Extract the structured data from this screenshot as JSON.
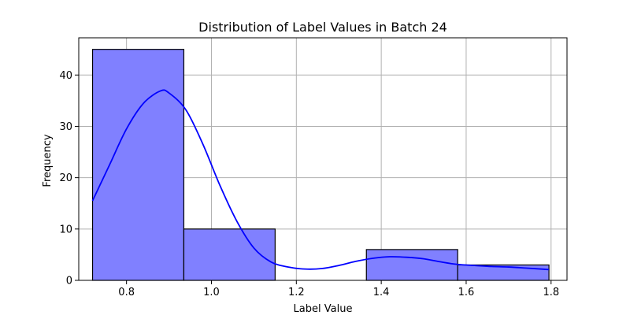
{
  "chart_data": {
    "type": "bar",
    "title": "Distribution of Label Values in Batch 24",
    "xlabel": "Label Value",
    "ylabel": "Frequency",
    "xlim": [
      0.6875,
      1.8375
    ],
    "ylim": [
      0,
      47.25
    ],
    "xticks": [
      0.8,
      1.0,
      1.2,
      1.4,
      1.6,
      1.8
    ],
    "xtick_labels": [
      "0.8",
      "1.0",
      "1.2",
      "1.4",
      "1.6",
      "1.8"
    ],
    "yticks": [
      0,
      10,
      20,
      30,
      40
    ],
    "ytick_labels": [
      "0",
      "10",
      "20",
      "30",
      "40"
    ],
    "grid": true,
    "bins": [
      {
        "x0": 0.72,
        "x1": 0.935,
        "count": 45
      },
      {
        "x0": 0.935,
        "x1": 1.15,
        "count": 10
      },
      {
        "x0": 1.15,
        "x1": 1.365,
        "count": 0
      },
      {
        "x0": 1.365,
        "x1": 1.58,
        "count": 6
      },
      {
        "x0": 1.58,
        "x1": 1.795,
        "count": 3
      }
    ],
    "kde": {
      "x": [
        0.72,
        0.76,
        0.8,
        0.84,
        0.88,
        0.9,
        0.94,
        0.98,
        1.02,
        1.06,
        1.1,
        1.14,
        1.18,
        1.22,
        1.26,
        1.3,
        1.34,
        1.38,
        1.42,
        1.46,
        1.5,
        1.54,
        1.58,
        1.62,
        1.66,
        1.7,
        1.74,
        1.795
      ],
      "y": [
        15.5,
        22.5,
        29.5,
        34.5,
        36.9,
        36.5,
        33.2,
        26.5,
        18.5,
        11.5,
        6.3,
        3.6,
        2.6,
        2.2,
        2.3,
        2.9,
        3.7,
        4.3,
        4.6,
        4.5,
        4.2,
        3.6,
        3.1,
        2.9,
        2.7,
        2.6,
        2.4,
        2.1
      ]
    },
    "colors": {
      "bar_fill": "#8080ff",
      "bar_edge": "#000000",
      "kde_line": "#0000ff",
      "grid": "#b0b0b0"
    }
  }
}
